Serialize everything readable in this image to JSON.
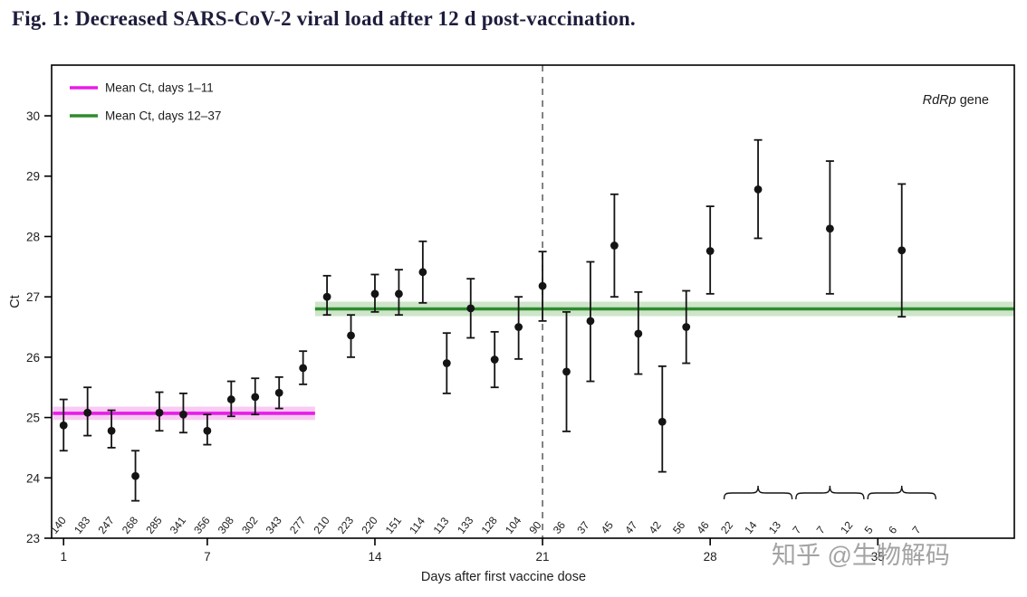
{
  "figure": {
    "title": "Fig. 1: Decreased SARS-CoV-2 viral load after 12 d post-vaccination."
  },
  "watermark": {
    "text": "知乎 @生物解码"
  },
  "chart_data": {
    "type": "scatter",
    "title": "",
    "xlabel": "Days after first vaccine dose",
    "ylabel": "Ct",
    "xlim": [
      0.5,
      40.7
    ],
    "ylim": [
      23,
      30.84
    ],
    "xticks": [
      1,
      7,
      14,
      21,
      28,
      35
    ],
    "yticks": [
      23,
      24,
      25,
      26,
      27,
      28,
      29,
      30
    ],
    "grid": false,
    "legend_position": "top-left-inside",
    "gene_annotation": {
      "italic": "RdRp",
      "rest": " gene"
    },
    "legend": [
      {
        "label": "Mean Ct, days 1–11",
        "color": "#e81ce8"
      },
      {
        "label": "Mean Ct, days 12–37",
        "color": "#2e8b2e"
      }
    ],
    "mean_lines": [
      {
        "name": "mean-ct-days-1-11",
        "y": 25.07,
        "x_start": 0.55,
        "x_end": 11.5,
        "band": 0.11,
        "color": "#e81ce8",
        "band_color": "#f7b9ef"
      },
      {
        "name": "mean-ct-days-12-37",
        "y": 26.8,
        "x_start": 11.5,
        "x_end": 40.7,
        "band": 0.12,
        "color": "#2e8b2e",
        "band_color": "#bddcb8"
      }
    ],
    "dashed_line_x": 21,
    "points": [
      {
        "day": 1,
        "ct": 24.87,
        "lo": 24.45,
        "hi": 25.3,
        "n": "140"
      },
      {
        "day": 2,
        "ct": 25.08,
        "lo": 24.7,
        "hi": 25.5,
        "n": "183"
      },
      {
        "day": 3,
        "ct": 24.78,
        "lo": 24.5,
        "hi": 25.12,
        "n": "247"
      },
      {
        "day": 4,
        "ct": 24.03,
        "lo": 23.62,
        "hi": 24.45,
        "n": "268"
      },
      {
        "day": 5,
        "ct": 25.08,
        "lo": 24.78,
        "hi": 25.42,
        "n": "285"
      },
      {
        "day": 6,
        "ct": 25.05,
        "lo": 24.75,
        "hi": 25.4,
        "n": "341"
      },
      {
        "day": 7,
        "ct": 24.78,
        "lo": 24.55,
        "hi": 25.05,
        "n": "356"
      },
      {
        "day": 8,
        "ct": 25.3,
        "lo": 25.02,
        "hi": 25.6,
        "n": "308"
      },
      {
        "day": 9,
        "ct": 25.34,
        "lo": 25.05,
        "hi": 25.65,
        "n": "302"
      },
      {
        "day": 10,
        "ct": 25.41,
        "lo": 25.15,
        "hi": 25.67,
        "n": "343"
      },
      {
        "day": 11,
        "ct": 25.82,
        "lo": 25.55,
        "hi": 26.1,
        "n": "277"
      },
      {
        "day": 12,
        "ct": 27.0,
        "lo": 26.7,
        "hi": 27.35,
        "n": "210"
      },
      {
        "day": 13,
        "ct": 26.36,
        "lo": 26.0,
        "hi": 26.7,
        "n": "223"
      },
      {
        "day": 14,
        "ct": 27.05,
        "lo": 26.75,
        "hi": 27.37,
        "n": "220"
      },
      {
        "day": 15,
        "ct": 27.05,
        "lo": 26.7,
        "hi": 27.45,
        "n": "151"
      },
      {
        "day": 16,
        "ct": 27.41,
        "lo": 26.9,
        "hi": 27.92,
        "n": "114"
      },
      {
        "day": 17,
        "ct": 25.9,
        "lo": 25.4,
        "hi": 26.4,
        "n": "113"
      },
      {
        "day": 18,
        "ct": 26.81,
        "lo": 26.32,
        "hi": 27.3,
        "n": "133"
      },
      {
        "day": 19,
        "ct": 25.96,
        "lo": 25.5,
        "hi": 26.42,
        "n": "128"
      },
      {
        "day": 20,
        "ct": 26.5,
        "lo": 25.97,
        "hi": 27.0,
        "n": "104"
      },
      {
        "day": 21,
        "ct": 27.18,
        "lo": 26.6,
        "hi": 27.75,
        "n": "90"
      },
      {
        "day": 22,
        "ct": 25.76,
        "lo": 24.77,
        "hi": 26.75,
        "n": "36"
      },
      {
        "day": 23,
        "ct": 26.6,
        "lo": 25.6,
        "hi": 27.58,
        "n": "37"
      },
      {
        "day": 24,
        "ct": 27.85,
        "lo": 27.0,
        "hi": 28.7,
        "n": "45"
      },
      {
        "day": 25,
        "ct": 26.39,
        "lo": 25.72,
        "hi": 27.08,
        "n": "47"
      },
      {
        "day": 26,
        "ct": 24.93,
        "lo": 24.1,
        "hi": 25.85,
        "n": "42"
      },
      {
        "day": 27,
        "ct": 26.5,
        "lo": 25.9,
        "hi": 27.1,
        "n": "56"
      },
      {
        "day": 28,
        "ct": 27.76,
        "lo": 27.05,
        "hi": 28.5,
        "n": "46"
      },
      {
        "day": 30,
        "ct": 28.78,
        "lo": 27.97,
        "hi": 29.6,
        "n": ""
      },
      {
        "day": 33,
        "ct": 28.13,
        "lo": 27.05,
        "hi": 29.25,
        "n": ""
      },
      {
        "day": 36,
        "ct": 27.77,
        "lo": 26.67,
        "hi": 28.87,
        "n": ""
      }
    ],
    "bracket_groups": [
      {
        "days": [
          29,
          30,
          31
        ],
        "ns": [
          "22",
          "14",
          "13"
        ]
      },
      {
        "days": [
          32,
          33,
          34
        ],
        "ns": [
          "7",
          "7",
          "12"
        ]
      },
      {
        "days": [
          35,
          36,
          37
        ],
        "ns": [
          "5",
          "6",
          "7"
        ]
      }
    ]
  }
}
